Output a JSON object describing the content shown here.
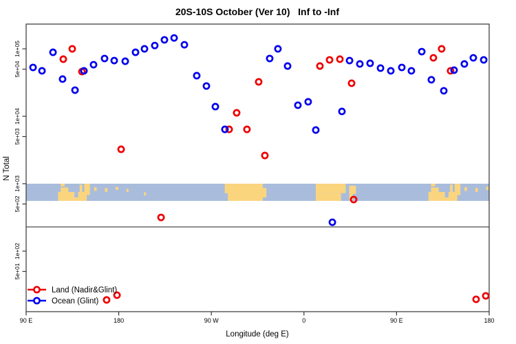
{
  "chart_data": {
    "type": "scatter",
    "title": "20S-10S October (Ver 10)   Inf to -Inf",
    "xlabel": "Longitude (deg E)",
    "ylabel": "N Total",
    "y_scale": "log",
    "grid": false,
    "legend_position": "bottom-left",
    "x_axis": {
      "range": [
        90,
        540
      ],
      "ticks": [
        90,
        180,
        270,
        360,
        450,
        540
      ],
      "tick_labels": [
        "90 E",
        "180",
        "90 W",
        "0",
        "90 E",
        "180"
      ]
    },
    "y_axis": {
      "ticks": [
        100000,
        50000,
        10000,
        5000,
        1000,
        500,
        100,
        50
      ],
      "tick_labels": [
        "1e+05",
        "5e+04",
        "1e+04",
        "5e+03",
        "1e+03",
        "5e+02",
        "1e+02",
        "5e+01"
      ]
    },
    "reference_line_n": 228,
    "series": [
      {
        "name": "Land (Nadir&Glint)",
        "color": "#ee0000",
        "marker": "open-circle",
        "points": [
          [
            126.1,
            70300
          ],
          [
            134.8,
            100000
          ],
          [
            144.2,
            46000
          ],
          [
            182.3,
            3240
          ],
          [
            221.1,
            316
          ],
          [
            287.3,
            6400
          ],
          [
            294.6,
            11250
          ],
          [
            304.6,
            6400
          ],
          [
            316.0,
            32400
          ],
          [
            322.0,
            2620
          ],
          [
            375.5,
            55600
          ],
          [
            384.9,
            68600
          ],
          [
            394.9,
            70300
          ],
          [
            406.3,
            30900
          ],
          [
            408.3,
            582
          ],
          [
            485.8,
            73600
          ],
          [
            493.8,
            100000
          ],
          [
            502.5,
            47200
          ],
          [
            527.3,
            19.3
          ],
          [
            536.7,
            21.7
          ],
          [
            168.2,
            18.9
          ],
          [
            178.3,
            22.2
          ]
        ]
      },
      {
        "name": "Ocean (Glint)",
        "color": "#0000ee",
        "marker": "open-circle",
        "points": [
          [
            96.7,
            53000
          ],
          [
            105.4,
            47200
          ],
          [
            116.1,
            88900
          ],
          [
            125.4,
            35600
          ],
          [
            137.5,
            24400
          ],
          [
            146.2,
            47200
          ],
          [
            155.5,
            58200
          ],
          [
            166.2,
            71900
          ],
          [
            175.6,
            67000
          ],
          [
            186.3,
            65500
          ],
          [
            196.3,
            88900
          ],
          [
            205.0,
            100000
          ],
          [
            215.0,
            112000
          ],
          [
            224.4,
            136000
          ],
          [
            233.8,
            145000
          ],
          [
            243.8,
            115000
          ],
          [
            255.8,
            40000
          ],
          [
            265.2,
            28100
          ],
          [
            273.9,
            13900
          ],
          [
            283.2,
            6400
          ],
          [
            326.7,
            71900
          ],
          [
            334.7,
            100000
          ],
          [
            344.1,
            55600
          ],
          [
            354.1,
            14600
          ],
          [
            364.1,
            16400
          ],
          [
            371.5,
            6250
          ],
          [
            387.6,
            268
          ],
          [
            396.9,
            11800
          ],
          [
            404.3,
            67000
          ],
          [
            414.3,
            59700
          ],
          [
            424.3,
            61100
          ],
          [
            434.4,
            51800
          ],
          [
            444.4,
            47200
          ],
          [
            455.1,
            53000
          ],
          [
            464.4,
            47200
          ],
          [
            474.5,
            91000
          ],
          [
            483.8,
            34800
          ],
          [
            495.9,
            23900
          ],
          [
            505.9,
            48300
          ],
          [
            515.9,
            59700
          ],
          [
            524.6,
            73600
          ],
          [
            534.7,
            68600
          ]
        ]
      }
    ],
    "map_strip": {
      "description": "world coastline band 20S-10S",
      "ocean_color": "#a9bcdc",
      "land_color": "#fad57e",
      "land_patches": [
        [
          121,
          149,
          0.48,
          1
        ],
        [
          123.5,
          131,
          0.22,
          0.48
        ],
        [
          142,
          144.5,
          0.05,
          0.48
        ],
        [
          146.5,
          152,
          0,
          0.66
        ],
        [
          123.5,
          127.5,
          0,
          0.16
        ],
        [
          156,
          158.5,
          0.2,
          0.42
        ],
        [
          166.5,
          169,
          0.25,
          0.48
        ],
        [
          177,
          179.5,
          0.18,
          0.36
        ],
        [
          187.5,
          189.5,
          0.3,
          0.48
        ],
        [
          204.5,
          206.5,
          0.5,
          0.68
        ],
        [
          286,
          320,
          0,
          1
        ],
        [
          283,
          286,
          0,
          0.55
        ],
        [
          320,
          323.5,
          0.25,
          0.8
        ],
        [
          371.5,
          400.5,
          0,
          0.55
        ],
        [
          371.5,
          396,
          0.55,
          1
        ],
        [
          404,
          410.5,
          0.12,
          0.6
        ],
        [
          404,
          407.5,
          0.6,
          0.95
        ],
        [
          481,
          509,
          0.48,
          1
        ],
        [
          483.5,
          491,
          0.22,
          0.48
        ],
        [
          502,
          504.5,
          0.05,
          0.48
        ],
        [
          506.5,
          512,
          0,
          0.66
        ],
        [
          483.5,
          487.5,
          0,
          0.16
        ],
        [
          516,
          518.5,
          0.2,
          0.42
        ],
        [
          526.5,
          529,
          0.25,
          0.48
        ],
        [
          537,
          539.5,
          0.18,
          0.36
        ]
      ],
      "water_patches": [
        [
          137,
          140.5,
          0.48,
          0.8
        ],
        [
          497,
          500.5,
          0.48,
          0.8
        ]
      ]
    },
    "legend": {
      "items": [
        {
          "label": "Land (Nadir&Glint)",
          "color": "#ee0000"
        },
        {
          "label": "Ocean (Glint)",
          "color": "#0000ee"
        }
      ]
    }
  }
}
